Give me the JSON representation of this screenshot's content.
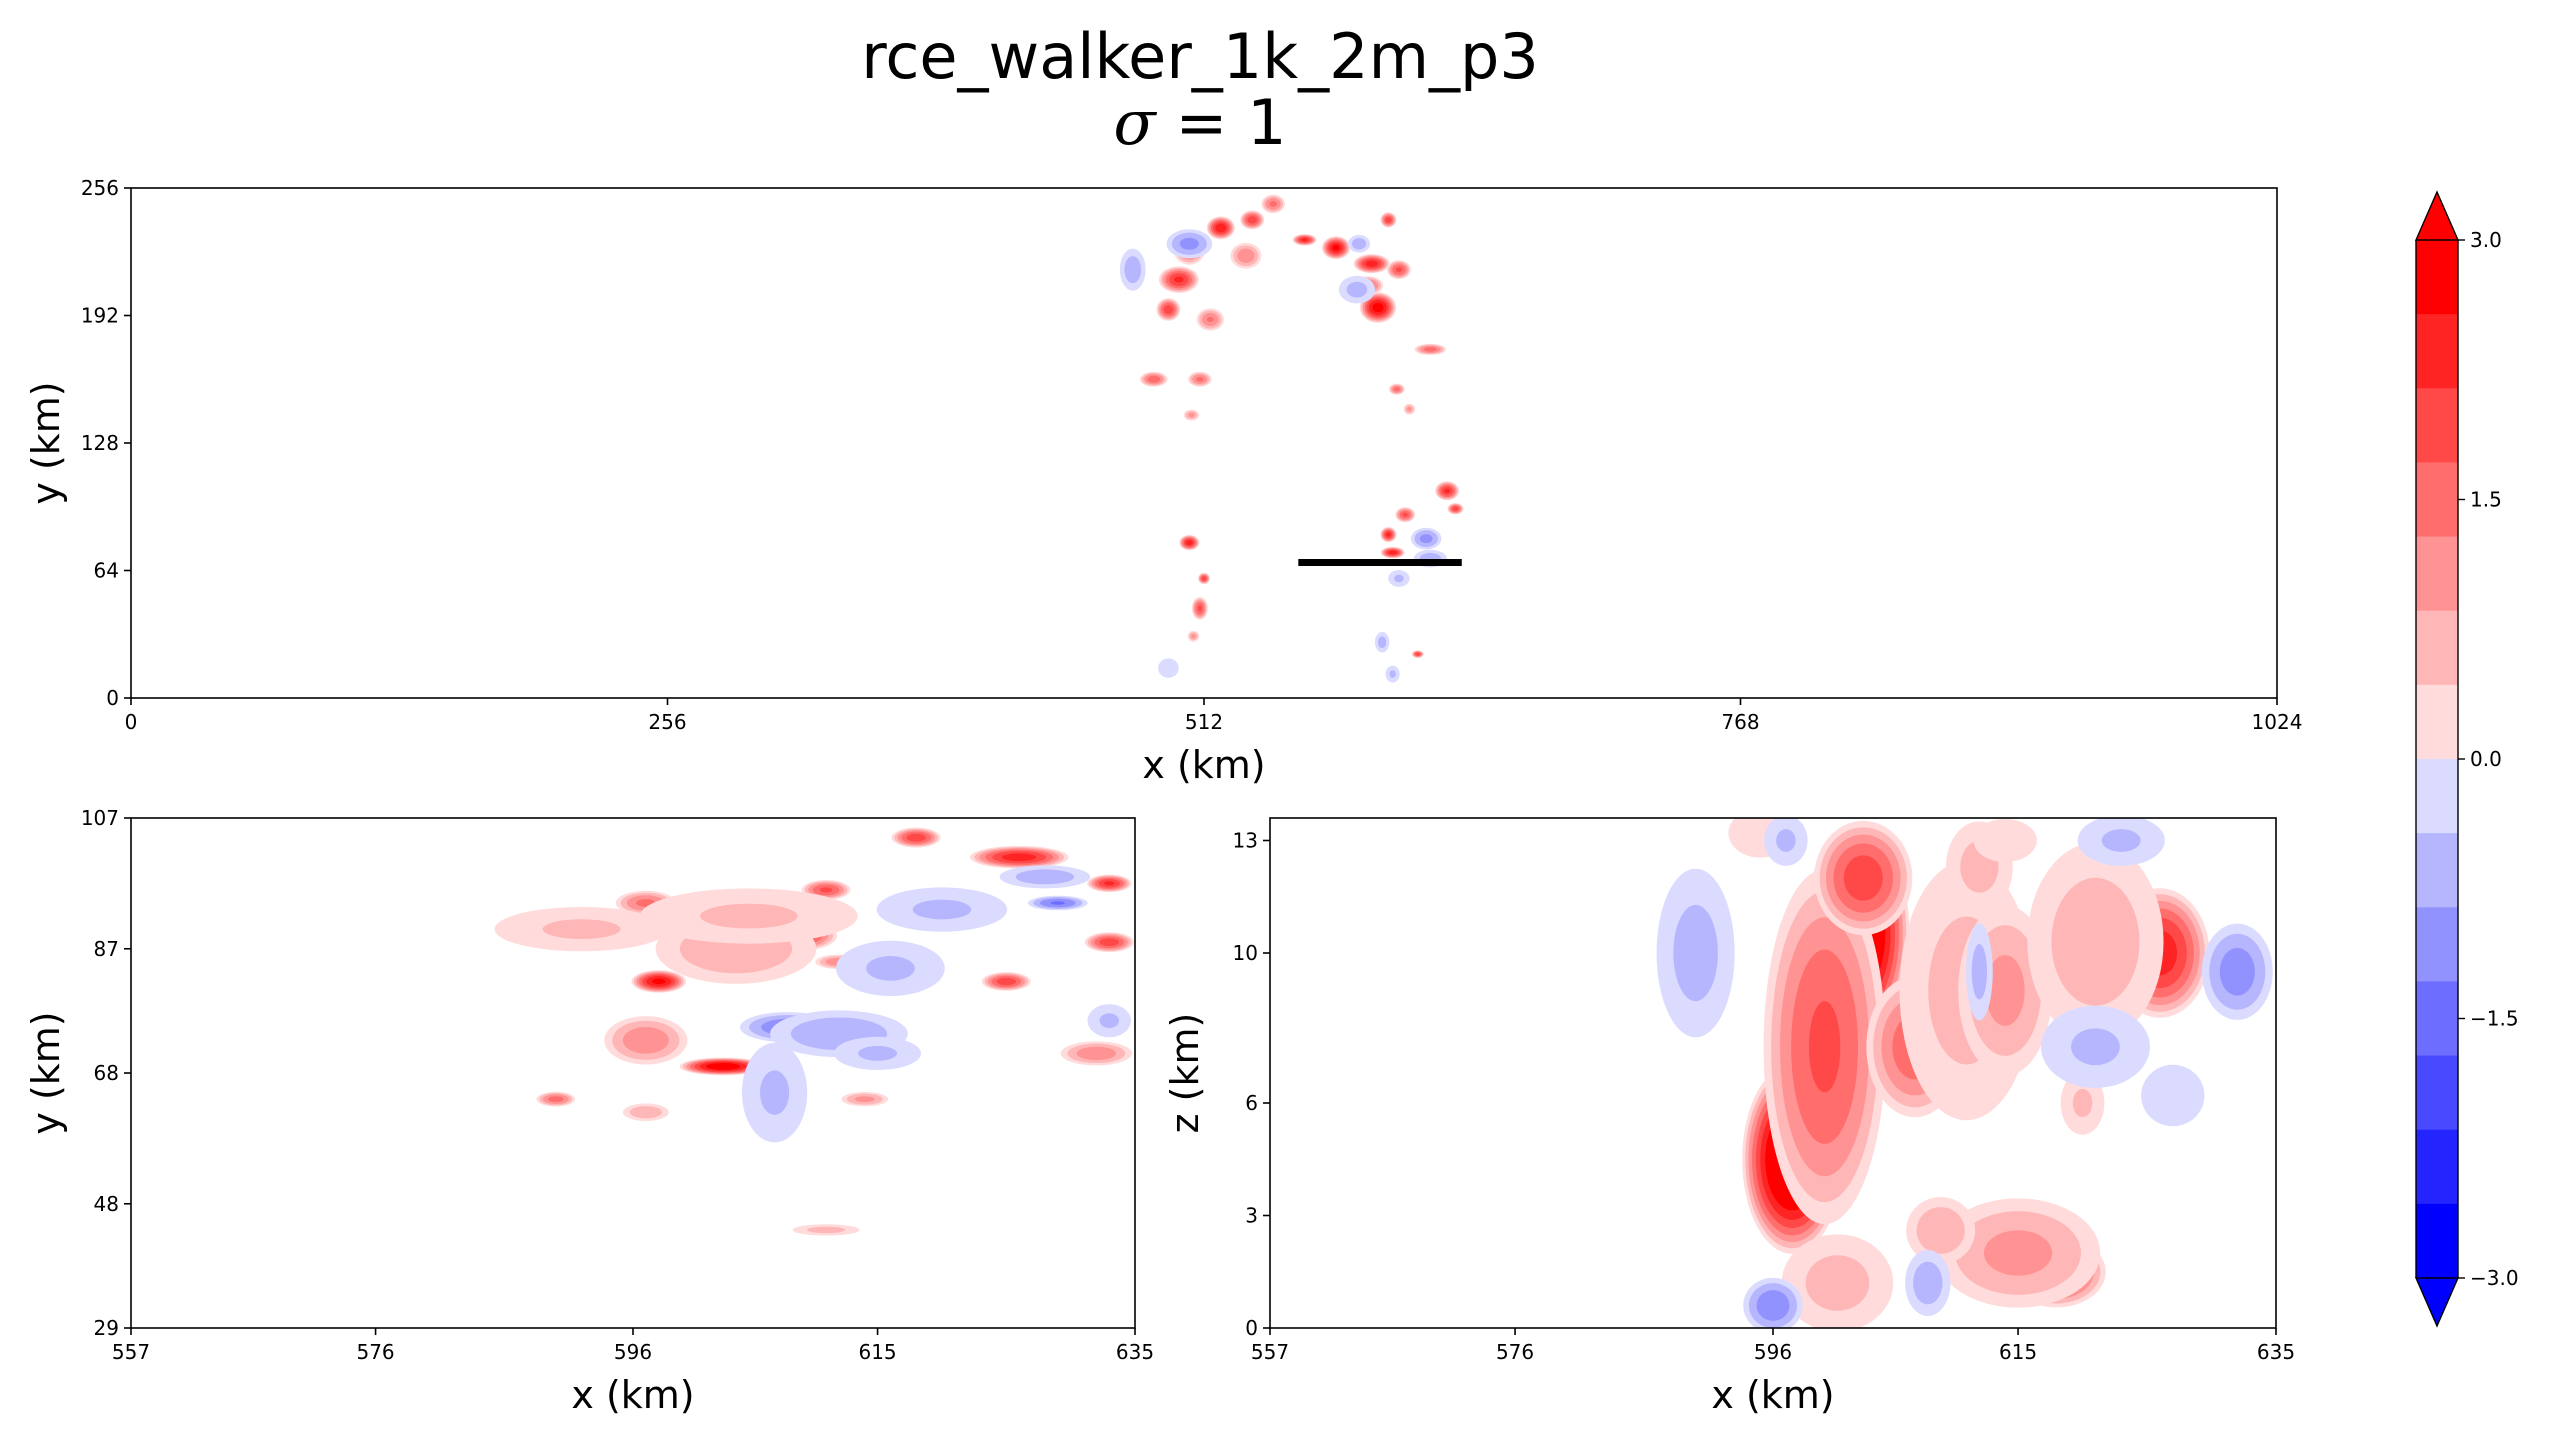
{
  "figure": {
    "title": "rce_walker_1k_2m_p3",
    "subtitle_symbol": "σ",
    "subtitle_rest": " = 1"
  },
  "colors": {
    "red": "#ff0000",
    "blue": "#0000ff",
    "line": "#000000"
  },
  "chart_data": [
    {
      "type": "heatmap",
      "name": "top-panel",
      "xlabel": "x (km)",
      "ylabel": "y (km)",
      "xlim": [
        0,
        1024
      ],
      "ylim": [
        0,
        256
      ],
      "xticks": [
        0,
        256,
        512,
        768,
        1024
      ],
      "yticks": [
        0,
        64,
        128,
        192,
        256
      ],
      "transect": {
        "x": [
          557,
          635
        ],
        "y": 68
      },
      "blobs": [
        {
          "x": 500,
          "y": 210,
          "v": 2.2,
          "rx": 10,
          "ry": 7
        },
        {
          "x": 505,
          "y": 225,
          "v": 1.5,
          "rx": 8,
          "ry": 8
        },
        {
          "x": 520,
          "y": 236,
          "v": 2.5,
          "rx": 7,
          "ry": 6
        },
        {
          "x": 532,
          "y": 222,
          "v": 1.2,
          "rx": 8,
          "ry": 7
        },
        {
          "x": 535,
          "y": 240,
          "v": 2.0,
          "rx": 6,
          "ry": 5
        },
        {
          "x": 545,
          "y": 248,
          "v": 1.4,
          "rx": 6,
          "ry": 5
        },
        {
          "x": 495,
          "y": 195,
          "v": 2.0,
          "rx": 6,
          "ry": 6
        },
        {
          "x": 515,
          "y": 190,
          "v": 1.3,
          "rx": 7,
          "ry": 6
        },
        {
          "x": 488,
          "y": 160,
          "v": 1.6,
          "rx": 7,
          "ry": 4
        },
        {
          "x": 510,
          "y": 160,
          "v": 1.4,
          "rx": 6,
          "ry": 4
        },
        {
          "x": 506,
          "y": 142,
          "v": 1.0,
          "rx": 4,
          "ry": 3
        },
        {
          "x": 505,
          "y": 228,
          "v": -1.0,
          "rx": 12,
          "ry": 8
        },
        {
          "x": 478,
          "y": 215,
          "v": -0.7,
          "rx": 7,
          "ry": 12
        },
        {
          "x": 560,
          "y": 230,
          "v": 2.3,
          "rx": 6,
          "ry": 3
        },
        {
          "x": 575,
          "y": 226,
          "v": 2.6,
          "rx": 7,
          "ry": 6
        },
        {
          "x": 592,
          "y": 218,
          "v": 2.4,
          "rx": 9,
          "ry": 5
        },
        {
          "x": 605,
          "y": 215,
          "v": 1.8,
          "rx": 6,
          "ry": 5
        },
        {
          "x": 595,
          "y": 196,
          "v": 2.8,
          "rx": 9,
          "ry": 8
        },
        {
          "x": 590,
          "y": 207,
          "v": 1.6,
          "rx": 8,
          "ry": 5
        },
        {
          "x": 600,
          "y": 240,
          "v": 2.0,
          "rx": 4,
          "ry": 4
        },
        {
          "x": 620,
          "y": 175,
          "v": 1.5,
          "rx": 8,
          "ry": 3
        },
        {
          "x": 604,
          "y": 155,
          "v": 1.5,
          "rx": 4,
          "ry": 3
        },
        {
          "x": 610,
          "y": 145,
          "v": 1.0,
          "rx": 3,
          "ry": 3
        },
        {
          "x": 585,
          "y": 205,
          "v": -0.6,
          "rx": 10,
          "ry": 8
        },
        {
          "x": 586,
          "y": 228,
          "v": -0.7,
          "rx": 6,
          "ry": 5
        },
        {
          "x": 628,
          "y": 104,
          "v": 2.2,
          "rx": 6,
          "ry": 5
        },
        {
          "x": 632,
          "y": 95,
          "v": 2.0,
          "rx": 4,
          "ry": 3
        },
        {
          "x": 608,
          "y": 92,
          "v": 1.8,
          "rx": 5,
          "ry": 4
        },
        {
          "x": 600,
          "y": 82,
          "v": 2.3,
          "rx": 4,
          "ry": 4
        },
        {
          "x": 602,
          "y": 73,
          "v": 2.4,
          "rx": 6,
          "ry": 3
        },
        {
          "x": 618,
          "y": 80,
          "v": -1.0,
          "rx": 8,
          "ry": 6
        },
        {
          "x": 620,
          "y": 70,
          "v": -0.7,
          "rx": 9,
          "ry": 5
        },
        {
          "x": 605,
          "y": 60,
          "v": -0.5,
          "rx": 6,
          "ry": 5
        },
        {
          "x": 614,
          "y": 22,
          "v": 2.0,
          "rx": 3,
          "ry": 2
        },
        {
          "x": 597,
          "y": 28,
          "v": -0.6,
          "rx": 4,
          "ry": 6
        },
        {
          "x": 602,
          "y": 12,
          "v": -0.5,
          "rx": 4,
          "ry": 5
        },
        {
          "x": 505,
          "y": 78,
          "v": 2.4,
          "rx": 5,
          "ry": 4
        },
        {
          "x": 512,
          "y": 60,
          "v": 2.0,
          "rx": 3,
          "ry": 3
        },
        {
          "x": 510,
          "y": 45,
          "v": 1.8,
          "rx": 4,
          "ry": 6
        },
        {
          "x": 507,
          "y": 31,
          "v": 1.0,
          "rx": 3,
          "ry": 3
        },
        {
          "x": 495,
          "y": 15,
          "v": -0.4,
          "rx": 6,
          "ry": 6
        }
      ],
      "ticks_x_labels": [
        "0",
        "256",
        "512",
        "768",
        "1024"
      ],
      "ticks_y_labels": [
        "0",
        "64",
        "128",
        "192",
        "256"
      ]
    },
    {
      "type": "heatmap",
      "name": "bottom-left-panel",
      "xlabel": "x (km)",
      "ylabel": "y (km)",
      "xlim": [
        557,
        635
      ],
      "ylim": [
        29,
        107
      ],
      "xticks": [
        557,
        576,
        596,
        615,
        635
      ],
      "yticks": [
        29,
        48,
        68,
        87,
        107
      ],
      "blobs": [
        {
          "x": 603,
          "y": 69,
          "v": 3.0,
          "rx": 3.5,
          "ry": 1.4
        },
        {
          "x": 598,
          "y": 82,
          "v": 2.7,
          "rx": 2.2,
          "ry": 1.8
        },
        {
          "x": 597,
          "y": 73,
          "v": 1.2,
          "rx": 3.5,
          "ry": 4
        },
        {
          "x": 597,
          "y": 94,
          "v": 1.4,
          "rx": 2.5,
          "ry": 2
        },
        {
          "x": 609,
          "y": 89,
          "v": 2.0,
          "rx": 3,
          "ry": 2.4
        },
        {
          "x": 611,
          "y": 96,
          "v": 1.8,
          "rx": 2,
          "ry": 1.6
        },
        {
          "x": 612,
          "y": 85,
          "v": 1.2,
          "rx": 2,
          "ry": 1.2
        },
        {
          "x": 604,
          "y": 87,
          "v": 0.8,
          "rx": 7,
          "ry": 6
        },
        {
          "x": 592,
          "y": 90,
          "v": 0.5,
          "rx": 8,
          "ry": 4
        },
        {
          "x": 605,
          "y": 92,
          "v": 0.5,
          "rx": 10,
          "ry": 5
        },
        {
          "x": 626,
          "y": 101,
          "v": 2.4,
          "rx": 4,
          "ry": 1.8
        },
        {
          "x": 618,
          "y": 104,
          "v": 2.0,
          "rx": 2,
          "ry": 1.6
        },
        {
          "x": 625,
          "y": 82,
          "v": 2.0,
          "rx": 2,
          "ry": 1.5
        },
        {
          "x": 633,
          "y": 97,
          "v": 2.2,
          "rx": 1.8,
          "ry": 1.4
        },
        {
          "x": 633,
          "y": 88,
          "v": 2.0,
          "rx": 2,
          "ry": 1.6
        },
        {
          "x": 632,
          "y": 71,
          "v": 1.2,
          "rx": 3,
          "ry": 2
        },
        {
          "x": 590,
          "y": 64,
          "v": 1.5,
          "rx": 1.6,
          "ry": 1.2
        },
        {
          "x": 597,
          "y": 62,
          "v": 0.8,
          "rx": 2,
          "ry": 1.5
        },
        {
          "x": 614,
          "y": 64,
          "v": 1.0,
          "rx": 2,
          "ry": 1.2
        },
        {
          "x": 611,
          "y": 44,
          "v": 0.6,
          "rx": 3,
          "ry": 1
        },
        {
          "x": 608,
          "y": 75,
          "v": -1.2,
          "rx": 4,
          "ry": 2.5
        },
        {
          "x": 612,
          "y": 74,
          "v": -0.8,
          "rx": 6,
          "ry": 4
        },
        {
          "x": 607,
          "y": 65,
          "v": -0.5,
          "rx": 3,
          "ry": 9
        },
        {
          "x": 616,
          "y": 84,
          "v": -0.5,
          "rx": 5,
          "ry": 5
        },
        {
          "x": 620,
          "y": 93,
          "v": -0.5,
          "rx": 6,
          "ry": 4
        },
        {
          "x": 629,
          "y": 94,
          "v": -1.3,
          "rx": 2.5,
          "ry": 1.2
        },
        {
          "x": 628,
          "y": 98,
          "v": -0.7,
          "rx": 4,
          "ry": 2
        },
        {
          "x": 615,
          "y": 71,
          "v": -0.5,
          "rx": 4,
          "ry": 3
        },
        {
          "x": 633,
          "y": 76,
          "v": -0.5,
          "rx": 2,
          "ry": 3
        }
      ],
      "ticks_x_labels": [
        "557",
        "576",
        "596",
        "615",
        "635"
      ],
      "ticks_y_labels": [
        "29",
        "48",
        "68",
        "87",
        "107"
      ]
    },
    {
      "type": "heatmap",
      "name": "bottom-right-panel",
      "xlabel": "x (km)",
      "ylabel": "z (km)",
      "xlim": [
        557,
        635
      ],
      "ylim": [
        0,
        13.6
      ],
      "xticks": [
        557,
        576,
        596,
        615,
        635
      ],
      "yticks": [
        0,
        3,
        6,
        10,
        13
      ],
      "blobs": [
        {
          "x": 602.5,
          "y": 10.5,
          "v": 3.6,
          "rx": 4.2,
          "ry": 3.0
        },
        {
          "x": 597.5,
          "y": 4.5,
          "v": 3.6,
          "rx": 4.0,
          "ry": 2.6
        },
        {
          "x": 600,
          "y": 7.5,
          "v": 1.8,
          "rx": 5,
          "ry": 5
        },
        {
          "x": 603,
          "y": 12.0,
          "v": 2.0,
          "rx": 4,
          "ry": 1.6
        },
        {
          "x": 607,
          "y": 7.5,
          "v": 1.6,
          "rx": 4,
          "ry": 2
        },
        {
          "x": 611,
          "y": 9.0,
          "v": 0.6,
          "rx": 6,
          "ry": 4
        },
        {
          "x": 615,
          "y": 8.5,
          "v": 2.0,
          "rx": 2.5,
          "ry": 1.5
        },
        {
          "x": 614,
          "y": 9.0,
          "v": 1.0,
          "rx": 4,
          "ry": 2.5
        },
        {
          "x": 626,
          "y": 10.0,
          "v": 2.4,
          "rx": 4,
          "ry": 1.8
        },
        {
          "x": 621,
          "y": 10.3,
          "v": 0.7,
          "rx": 6,
          "ry": 3
        },
        {
          "x": 618,
          "y": 1.5,
          "v": 2.0,
          "rx": 4,
          "ry": 1.0
        },
        {
          "x": 615,
          "y": 2,
          "v": 1.0,
          "rx": 7,
          "ry": 1.6
        },
        {
          "x": 609,
          "y": 2.6,
          "v": 0.8,
          "rx": 3,
          "ry": 1
        },
        {
          "x": 601,
          "y": 1.2,
          "v": 0.6,
          "rx": 5,
          "ry": 1.5
        },
        {
          "x": 612,
          "y": 12.3,
          "v": 0.6,
          "rx": 3,
          "ry": 1.4
        },
        {
          "x": 595,
          "y": 13.2,
          "v": 0.4,
          "rx": 3,
          "ry": 0.8
        },
        {
          "x": 614,
          "y": 13.0,
          "v": 0.4,
          "rx": 3,
          "ry": 0.7
        },
        {
          "x": 620,
          "y": 6.0,
          "v": 0.5,
          "rx": 2,
          "ry": 1.0
        },
        {
          "x": 590,
          "y": 10,
          "v": -0.6,
          "rx": 3.5,
          "ry": 2.6
        },
        {
          "x": 596,
          "y": 0.6,
          "v": -1.2,
          "rx": 2.5,
          "ry": 0.8
        },
        {
          "x": 608,
          "y": 1.2,
          "v": -0.7,
          "rx": 2,
          "ry": 1
        },
        {
          "x": 621,
          "y": 7.5,
          "v": -0.5,
          "rx": 5,
          "ry": 1.3
        },
        {
          "x": 627,
          "y": 6.2,
          "v": -0.4,
          "rx": 3,
          "ry": 1
        },
        {
          "x": 632,
          "y": 9.5,
          "v": -1.1,
          "rx": 3,
          "ry": 1.4
        },
        {
          "x": 612,
          "y": 9.5,
          "v": -0.6,
          "rx": 1.2,
          "ry": 1.5
        },
        {
          "x": 623,
          "y": 13.0,
          "v": -0.5,
          "rx": 4,
          "ry": 0.8
        },
        {
          "x": 597,
          "y": 13.0,
          "v": -0.5,
          "rx": 2,
          "ry": 0.8
        }
      ],
      "ticks_x_labels": [
        "557",
        "576",
        "596",
        "615",
        "635"
      ],
      "ticks_y_labels": [
        "0",
        "3",
        "6",
        "10",
        "13"
      ]
    },
    {
      "type": "colorbar",
      "name": "colorbar",
      "vmin": -3.0,
      "vmax": 3.0,
      "levels": 14,
      "tick_values": [
        -3.0,
        -1.5,
        0.0,
        1.5,
        3.0
      ],
      "tick_labels": [
        "−3.0",
        "−1.5",
        "0.0",
        "1.5",
        "3.0"
      ],
      "extend": "both"
    }
  ]
}
